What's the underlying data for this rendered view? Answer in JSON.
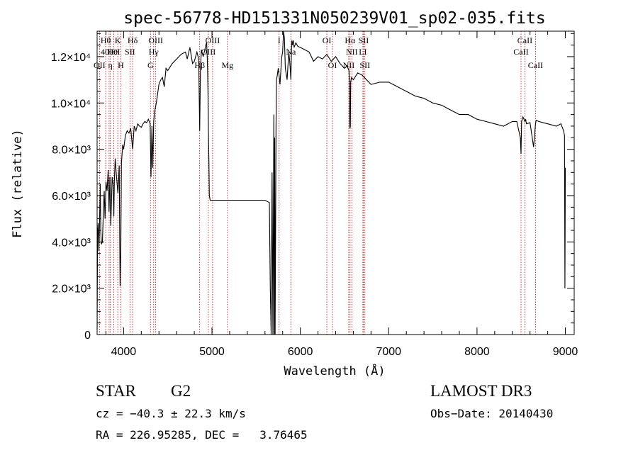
{
  "chart_data": {
    "type": "line",
    "title": "spec-56778-HD151331N050239V01_sp02-035.fits",
    "xlabel": "Wavelength (Å)",
    "ylabel": "Flux (relative)",
    "xlim": [
      3700,
      9100
    ],
    "ylim": [
      0,
      13100
    ],
    "x_ticks": [
      4000,
      5000,
      6000,
      7000,
      8000,
      9000
    ],
    "x_tick_labels": [
      "4000",
      "5000",
      "6000",
      "7000",
      "8000",
      "9000"
    ],
    "y_ticks": [
      0,
      2000,
      4000,
      6000,
      8000,
      10000,
      12000
    ],
    "y_tick_labels": [
      "0",
      "2.0×10³",
      "4.0×10³",
      "6.0×10³",
      "8.0×10³",
      "1.0×10⁴",
      "1.2×10⁴"
    ],
    "series": [
      {
        "color": "#000000",
        "x": [
          3700,
          3705,
          3712,
          3720,
          3728,
          3735,
          3742,
          3750,
          3760,
          3770,
          3780,
          3790,
          3800,
          3812,
          3825,
          3835,
          3845,
          3855,
          3870,
          3880,
          3889,
          3895,
          3905,
          3920,
          3935,
          3950,
          3960,
          3968,
          3975,
          3990,
          4000,
          4020,
          4040,
          4060,
          4080,
          4102,
          4120,
          4140,
          4160,
          4180,
          4200,
          4220,
          4240,
          4260,
          4280,
          4300,
          4310,
          4320,
          4330,
          4340,
          4350,
          4370,
          4400,
          4420,
          4440,
          4460,
          4480,
          4500,
          4550,
          4600,
          4650,
          4700,
          4720,
          4750,
          4780,
          4800,
          4830,
          4850,
          4861,
          4870,
          4880,
          4900,
          4920,
          4930,
          4940,
          4945,
          4950,
          4955,
          4960,
          4965,
          4970,
          4980,
          5000,
          5050,
          5100,
          5200,
          5300,
          5400,
          5500,
          5600,
          5650,
          5660,
          5670,
          5680,
          5690,
          5700,
          5705,
          5710,
          5715,
          5720,
          5725,
          5730,
          5740,
          5750,
          5760,
          5770,
          5780,
          5790,
          5800,
          5810,
          5820,
          5830,
          5850,
          5870,
          5880,
          5889,
          5893,
          5896,
          5900,
          5905,
          5910,
          5920,
          5930,
          5950,
          5970,
          6000,
          6050,
          6100,
          6150,
          6200,
          6250,
          6300,
          6350,
          6400,
          6450,
          6500,
          6530,
          6550,
          6555,
          6560,
          6563,
          6566,
          6570,
          6580,
          6600,
          6650,
          6700,
          6750,
          6800,
          6900,
          7000,
          7100,
          7200,
          7300,
          7400,
          7500,
          7600,
          7700,
          7800,
          7900,
          8000,
          8100,
          8200,
          8300,
          8400,
          8450,
          8490,
          8498,
          8505,
          8520,
          8542,
          8550,
          8560,
          8600,
          8640,
          8662,
          8670,
          8700,
          8800,
          8900,
          8950,
          8980,
          8990,
          8995,
          9000
        ],
        "y": [
          200,
          4300,
          4800,
          3600,
          4900,
          6500,
          4400,
          3900,
          4000,
          5200,
          6200,
          5000,
          6600,
          6200,
          7100,
          5300,
          6800,
          4700,
          6800,
          6500,
          5100,
          6600,
          7600,
          6800,
          6100,
          7300,
          2100,
          3600,
          7400,
          8200,
          8000,
          8600,
          8800,
          8700,
          8900,
          8000,
          9000,
          8800,
          9100,
          9000,
          8950,
          9100,
          9200,
          9150,
          9300,
          9100,
          6800,
          9000,
          7200,
          9200,
          9600,
          10000,
          10800,
          11000,
          11100,
          10700,
          11500,
          11400,
          11700,
          11900,
          12100,
          12200,
          11900,
          12400,
          11700,
          11800,
          12200,
          11900,
          8800,
          11500,
          12300,
          12000,
          12300,
          12500,
          12600,
          12100,
          11500,
          10500,
          8800,
          7500,
          6000,
          5800,
          5800,
          5800,
          5800,
          5800,
          5800,
          5800,
          5800,
          5800,
          5700,
          2000,
          0,
          7000,
          0,
          9500,
          0,
          8500,
          0,
          4500,
          9000,
          11000,
          11200,
          11500,
          11200,
          10800,
          11400,
          12000,
          12200,
          13100,
          12800,
          11500,
          11000,
          12200,
          11800,
          11300,
          11000,
          11600,
          12400,
          12700,
          12500,
          12700,
          12400,
          12600,
          12450,
          12400,
          12300,
          12200,
          11800,
          12000,
          11900,
          12100,
          11800,
          12000,
          11700,
          11500,
          11600,
          11400,
          11000,
          9000,
          8900,
          9000,
          10900,
          11100,
          11000,
          11300,
          11200,
          11000,
          10800,
          10900,
          10900,
          10700,
          10500,
          10300,
          10200,
          10000,
          9900,
          9700,
          9500,
          9500,
          9300,
          9200,
          9100,
          9000,
          9200,
          9200,
          8500,
          7800,
          9200,
          9400,
          9200,
          9300,
          9100,
          9150,
          8100,
          9100,
          9250,
          9200,
          9100,
          9000,
          9100,
          8800,
          8600,
          2000,
          7200
        ]
      }
    ],
    "line_annotations": [
      {
        "label": "Hθ",
        "x": 3797,
        "row": 1
      },
      {
        "label": "OII",
        "x": 3727,
        "row": 3
      },
      {
        "label": "4000",
        "x": 3836,
        "row": 2
      },
      {
        "label": "K",
        "x": 3934,
        "row": 1
      },
      {
        "label": "HeI",
        "x": 3889,
        "row": 2
      },
      {
        "label": "η",
        "x": 3850,
        "row": 3
      },
      {
        "label": "H",
        "x": 3968,
        "row": 3
      },
      {
        "label": "Hδ",
        "x": 4102,
        "row": 1
      },
      {
        "label": "SII",
        "x": 4072,
        "row": 2
      },
      {
        "label": "OIII",
        "x": 4363,
        "row": 1
      },
      {
        "label": "Hγ",
        "x": 4340,
        "row": 2
      },
      {
        "label": "G",
        "x": 4304,
        "row": 3
      },
      {
        "label": "OIII",
        "x": 5007,
        "row": 1
      },
      {
        "label": "OIII",
        "x": 4959,
        "row": 2
      },
      {
        "label": "Hβ",
        "x": 4861,
        "row": 3
      },
      {
        "label": "Mg",
        "x": 5175,
        "row": 3
      },
      {
        "label": "I",
        "x": 5760,
        "row": 1
      },
      {
        "label": "Na",
        "x": 5893,
        "row": 2
      },
      {
        "label": "OI",
        "x": 6300,
        "row": 1
      },
      {
        "label": "OI",
        "x": 6364,
        "row": 3
      },
      {
        "label": "Hα",
        "x": 6563,
        "row": 1
      },
      {
        "label": "SII",
        "x": 6716,
        "row": 1
      },
      {
        "label": "NII",
        "x": 6583,
        "row": 2
      },
      {
        "label": "LI",
        "x": 6708,
        "row": 2
      },
      {
        "label": "NII",
        "x": 6548,
        "row": 3
      },
      {
        "label": "SII",
        "x": 6731,
        "row": 3
      },
      {
        "label": "CaII",
        "x": 8542,
        "row": 1
      },
      {
        "label": "CaII",
        "x": 8498,
        "row": 2
      },
      {
        "label": "CaII",
        "x": 8662,
        "row": 3
      }
    ]
  },
  "info": {
    "object_class": "STAR",
    "subclass": "G2",
    "survey": "LAMOST DR3",
    "cz": "cz = −40.3 ± 22.3 km/s",
    "obs_date": "Obs−Date: 20140430",
    "coords": "RA = 226.95285, DEC =   3.76465"
  },
  "colors": {
    "spectrum": "#000000",
    "line_markers": "#cc0000",
    "axes": "#000000",
    "background": "#ffffff"
  }
}
